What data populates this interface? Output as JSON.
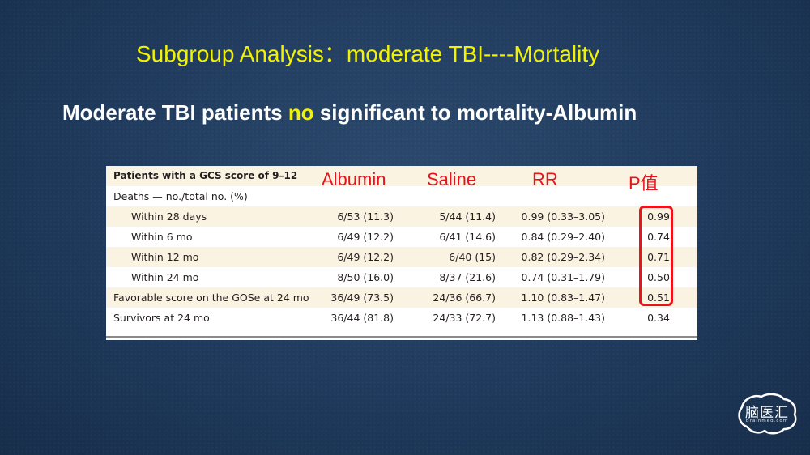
{
  "subtitle": "Subgroup Analysis：moderate TBI----Mortality",
  "headline": {
    "before": "Moderate TBI patients ",
    "highlight": "no",
    "after": " significant to mortality-Albumin"
  },
  "colors": {
    "accent_yellow": "#f2f200",
    "accent_red": "#e8131b",
    "background": "#1f3a5c"
  },
  "table": {
    "section_title": "Patients with a GCS score of 9–12",
    "column_headers": {
      "albumin": "Albumin",
      "saline": "Saline",
      "rr": "RR",
      "p": "P值"
    },
    "deaths_label": "Deaths — no./total no. (%)",
    "rows": [
      {
        "label": "Within 28 days",
        "albumin": "6/53 (11.3)",
        "saline": "5/44 (11.4)",
        "rr": "0.99 (0.33–3.05)",
        "p": "0.99"
      },
      {
        "label": "Within 6 mo",
        "albumin": "6/49 (12.2)",
        "saline": "6/41 (14.6)",
        "rr": "0.84 (0.29–2.40)",
        "p": "0.74"
      },
      {
        "label": "Within 12 mo",
        "albumin": "6/49 (12.2)",
        "saline": "6/40 (15)",
        "rr": "0.82 (0.29–2.34)",
        "p": "0.71"
      },
      {
        "label": "Within 24 mo",
        "albumin": "8/50 (16.0)",
        "saline": "8/37 (21.6)",
        "rr": "0.74 (0.31–1.79)",
        "p": "0.50"
      },
      {
        "label": "Favorable score on the GOSe at 24 mo",
        "albumin": "36/49 (73.5)",
        "saline": "24/36 (66.7)",
        "rr": "1.10 (0.83–1.47)",
        "p": "0.51"
      },
      {
        "label": "Survivors at 24 mo",
        "albumin": "36/44 (81.8)",
        "saline": "24/33 (72.7)",
        "rr": "1.13 (0.88–1.43)",
        "p": "0.34"
      }
    ]
  },
  "logo": {
    "text": "脑医汇",
    "subtext": "Brainmed.com",
    "icon": "brain-outline-logo"
  }
}
